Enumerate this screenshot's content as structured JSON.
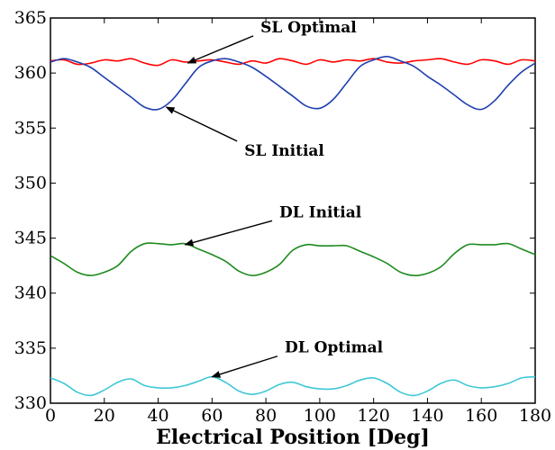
{
  "chart_data": {
    "type": "line",
    "title": "",
    "xlabel": "Electrical Position [Deg]",
    "ylabel": "",
    "xlim": [
      0,
      180
    ],
    "ylim": [
      330,
      365
    ],
    "xticks": [
      0,
      20,
      40,
      60,
      80,
      100,
      120,
      140,
      160,
      180
    ],
    "yticks": [
      330,
      335,
      340,
      345,
      350,
      355,
      360,
      365
    ],
    "grid": false,
    "legend": "none",
    "series": [
      {
        "name": "SL Optimal",
        "color": "#ff0000",
        "x": [
          0,
          5,
          10,
          15,
          20,
          25,
          30,
          35,
          40,
          45,
          50,
          55,
          60,
          65,
          70,
          75,
          80,
          85,
          90,
          95,
          100,
          105,
          110,
          115,
          120,
          125,
          130,
          135,
          140,
          145,
          150,
          155,
          160,
          165,
          170,
          175,
          180
        ],
        "y": [
          361.1,
          361.2,
          360.8,
          360.9,
          361.2,
          361.1,
          361.3,
          360.9,
          360.7,
          361.2,
          361.0,
          361.1,
          361.2,
          361.0,
          360.8,
          361.1,
          360.9,
          361.3,
          361.1,
          360.8,
          361.2,
          361.0,
          361.2,
          361.1,
          361.3,
          361.0,
          360.9,
          361.1,
          361.2,
          361.3,
          361.0,
          360.8,
          361.2,
          361.1,
          360.8,
          361.2,
          361.1
        ]
      },
      {
        "name": "SL Initial",
        "color": "#1f3fb0",
        "x": [
          0,
          5,
          10,
          15,
          20,
          25,
          30,
          35,
          40,
          45,
          50,
          55,
          60,
          65,
          70,
          75,
          80,
          85,
          90,
          95,
          100,
          105,
          110,
          115,
          120,
          125,
          130,
          135,
          140,
          145,
          150,
          155,
          160,
          165,
          170,
          175,
          180
        ],
        "y": [
          361.0,
          361.3,
          361.0,
          360.5,
          359.6,
          358.7,
          357.8,
          356.9,
          356.7,
          357.5,
          359.0,
          360.5,
          361.1,
          361.3,
          361.0,
          360.5,
          359.7,
          358.8,
          357.9,
          357.0,
          356.8,
          357.6,
          359.1,
          360.6,
          361.2,
          361.5,
          361.1,
          360.6,
          359.7,
          358.9,
          358.0,
          357.1,
          356.7,
          357.5,
          358.9,
          360.1,
          360.9
        ]
      },
      {
        "name": "DL Initial",
        "color": "#1e8a1e",
        "x": [
          0,
          5,
          10,
          15,
          20,
          25,
          30,
          35,
          40,
          45,
          50,
          55,
          60,
          65,
          70,
          75,
          80,
          85,
          90,
          95,
          100,
          105,
          110,
          115,
          120,
          125,
          130,
          135,
          140,
          145,
          150,
          155,
          160,
          165,
          170,
          175,
          180
        ],
        "y": [
          343.4,
          342.7,
          341.9,
          341.6,
          341.9,
          342.5,
          343.8,
          344.5,
          344.5,
          344.4,
          344.5,
          344.0,
          343.5,
          342.9,
          342.0,
          341.6,
          341.9,
          342.6,
          343.9,
          344.4,
          344.3,
          344.3,
          344.3,
          343.8,
          343.3,
          342.7,
          341.9,
          341.6,
          341.8,
          342.4,
          343.6,
          344.4,
          344.4,
          344.4,
          344.5,
          344.0,
          343.5
        ]
      },
      {
        "name": "DL Optimal",
        "color": "#3fc8d6",
        "x": [
          0,
          5,
          10,
          15,
          20,
          25,
          30,
          35,
          40,
          45,
          50,
          55,
          60,
          65,
          70,
          75,
          80,
          85,
          90,
          95,
          100,
          105,
          110,
          115,
          120,
          125,
          130,
          135,
          140,
          145,
          150,
          155,
          160,
          165,
          170,
          175,
          180
        ],
        "y": [
          332.3,
          331.8,
          331.0,
          330.7,
          331.2,
          331.9,
          332.2,
          331.6,
          331.4,
          331.4,
          331.6,
          332.0,
          332.4,
          331.9,
          331.1,
          330.8,
          331.1,
          331.7,
          331.9,
          331.5,
          331.3,
          331.3,
          331.6,
          332.1,
          332.3,
          331.8,
          331.0,
          330.7,
          331.1,
          331.8,
          332.1,
          331.6,
          331.4,
          331.5,
          331.8,
          332.3,
          332.4
        ]
      }
    ],
    "annotations": [
      {
        "text": "SL Optimal",
        "target": [
          51,
          360.9
        ],
        "text_at": [
          78,
          363.7
        ]
      },
      {
        "text": "SL Initial",
        "target": [
          43,
          356.9
        ],
        "text_at": [
          72,
          352.5
        ]
      },
      {
        "text": "DL Initial",
        "target": [
          50,
          344.4
        ],
        "text_at": [
          85,
          346.9
        ]
      },
      {
        "text": "DL Optimal",
        "target": [
          60,
          332.4
        ],
        "text_at": [
          87,
          334.6
        ]
      }
    ]
  }
}
